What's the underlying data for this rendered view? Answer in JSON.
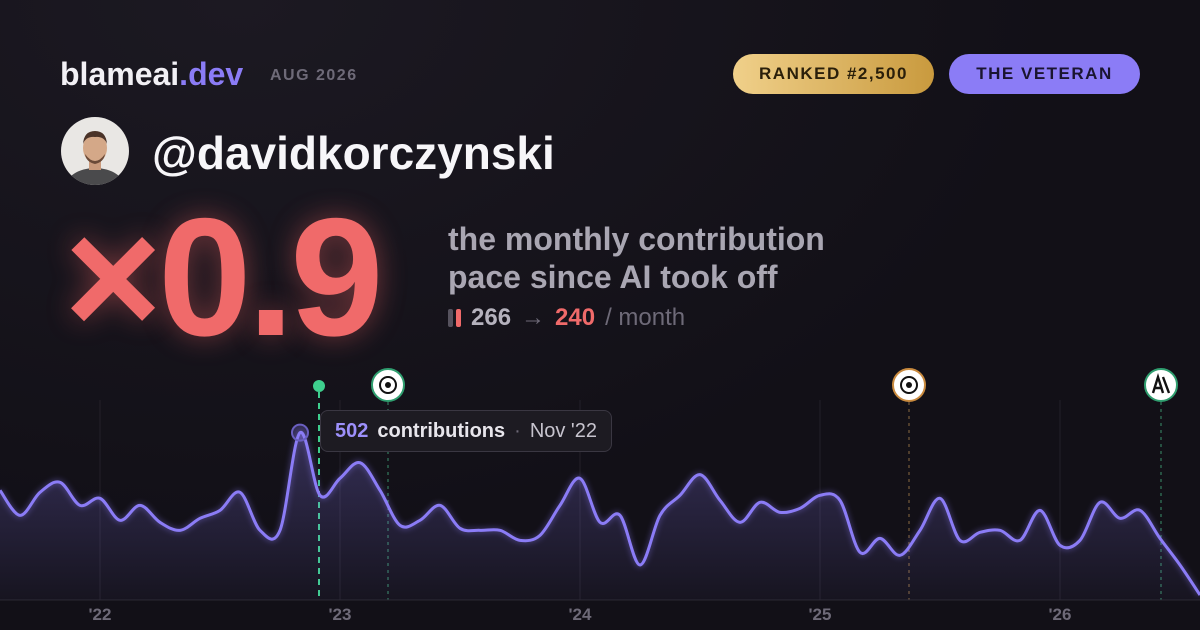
{
  "header": {
    "brand": "blameai",
    "brand_tld": ".dev",
    "period": "AUG 2026",
    "rank": "RANKED #2,500",
    "badge": "THE VETERAN"
  },
  "user": {
    "handle": "@davidkorczynski"
  },
  "stat": {
    "multiplier": "×0.9",
    "caption_line1": "the monthly contribution",
    "caption_line2": "pace since AI took off",
    "before": "266",
    "arrow": "→",
    "after": "240",
    "unit": "/ month"
  },
  "tooltip": {
    "label": "contributions",
    "date": "Nov '22"
  },
  "chart_data": {
    "type": "line",
    "color": "#8b7cf6",
    "values": [
      329,
      254,
      323,
      353,
      284,
      305,
      239,
      284,
      233,
      209,
      245,
      269,
      323,
      209,
      209,
      502,
      314,
      365,
      412,
      329,
      224,
      239,
      284,
      215,
      209,
      209,
      179,
      194,
      284,
      365,
      233,
      254,
      105,
      254,
      314,
      376,
      299,
      233,
      293,
      263,
      275,
      314,
      299,
      143,
      185,
      134,
      209,
      305,
      179,
      203,
      209,
      179,
      269,
      164,
      179,
      293,
      245,
      269,
      185,
      105,
      15
    ],
    "xlim": [
      0,
      60
    ],
    "xticks": [
      {
        "value": 5,
        "label": "'22"
      },
      {
        "value": 17,
        "label": "'23"
      },
      {
        "value": 29,
        "label": "'24"
      },
      {
        "value": 41,
        "label": "'25"
      },
      {
        "value": 53,
        "label": "'26"
      }
    ],
    "ylim": [
      0,
      600
    ],
    "grid": true
  }
}
